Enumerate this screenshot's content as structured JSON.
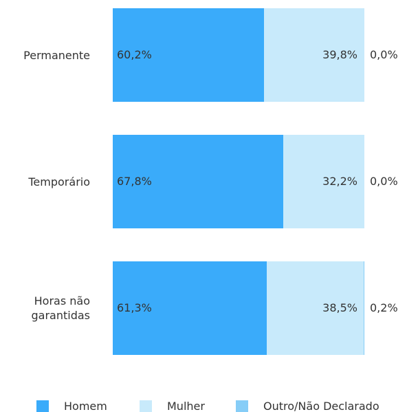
{
  "chart_data": {
    "type": "stacked-bar-horizontal",
    "categories": [
      "Permanente",
      "Temporário",
      "Horas não garantidas"
    ],
    "series": [
      {
        "name": "Homem",
        "color": "#3aabfa",
        "values": [
          60.2,
          67.8,
          61.3
        ],
        "value_labels": [
          "60,2%",
          "67,8%",
          "61,3%"
        ]
      },
      {
        "name": "Mulher",
        "color": "#c8eafb",
        "values": [
          39.8,
          32.2,
          38.5
        ],
        "value_labels": [
          "39,8%",
          "32,2%",
          "38,5%"
        ]
      },
      {
        "name": "Outro/Não Declarado",
        "color": "#86cdf7",
        "values": [
          0.0,
          0.0,
          0.2
        ],
        "value_labels": [
          "0,0%",
          "0,0%",
          "0,2%"
        ]
      }
    ],
    "legend": "bottom"
  }
}
